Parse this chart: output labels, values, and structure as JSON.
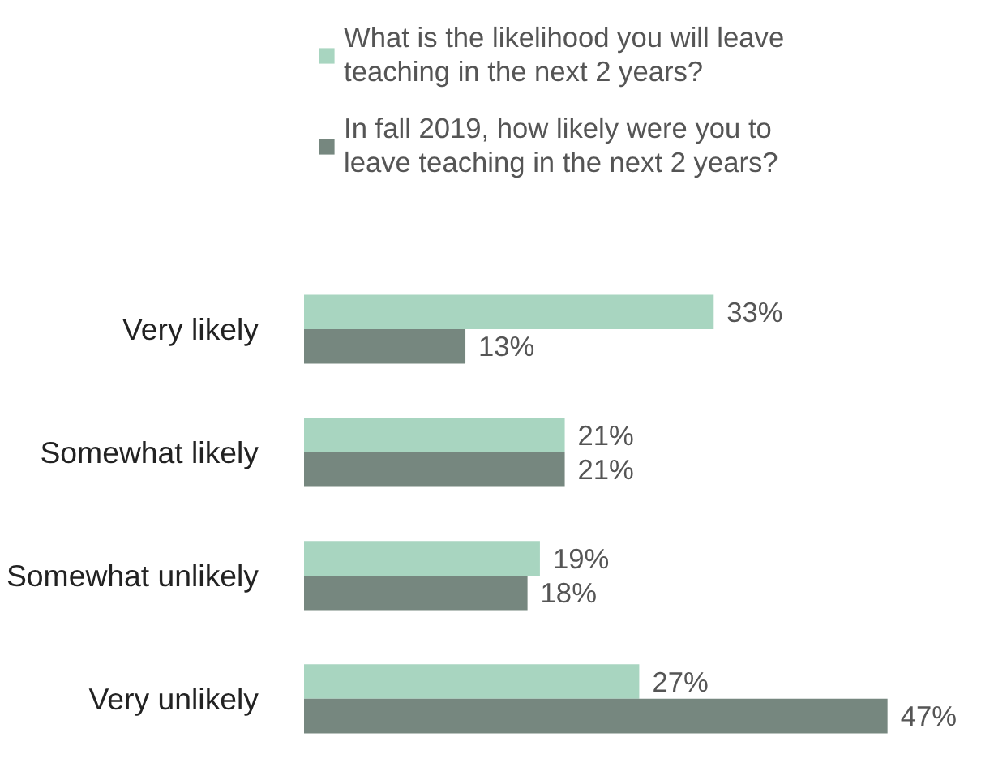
{
  "chart_data": {
    "type": "bar",
    "orientation": "horizontal",
    "legend": "top",
    "categories": [
      "Very likely",
      "Somewhat likely",
      "Somewhat unlikely",
      "Very unlikely"
    ],
    "series": [
      {
        "name": "What is the likelihood you will leave teaching in the next 2 years?",
        "color": "#a8d5c0",
        "values": [
          33,
          21,
          19,
          27
        ],
        "value_labels": [
          "33%",
          "21%",
          "19%",
          "27%"
        ]
      },
      {
        "name": "In fall 2019, how likely were you to leave teaching in the next 2 years?",
        "color": "#76877f",
        "values": [
          13,
          21,
          18,
          47
        ],
        "value_labels": [
          "13%",
          "21%",
          "18%",
          "47%"
        ]
      }
    ]
  }
}
